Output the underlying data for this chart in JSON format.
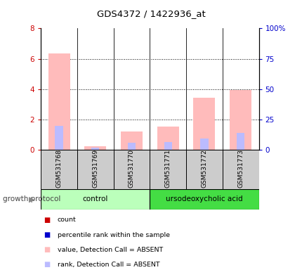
{
  "title": "GDS4372 / 1422936_at",
  "samples": [
    "GSM531768",
    "GSM531769",
    "GSM531770",
    "GSM531771",
    "GSM531772",
    "GSM531773"
  ],
  "value_absent": [
    6.35,
    0.22,
    1.2,
    1.55,
    3.45,
    3.95
  ],
  "rank_absent": [
    1.6,
    0.15,
    0.45,
    0.5,
    0.75,
    1.1
  ],
  "ylim_left": [
    0,
    8
  ],
  "ylim_right": [
    0,
    100
  ],
  "yticks_left": [
    0,
    2,
    4,
    6,
    8
  ],
  "yticks_right": [
    0,
    25,
    50,
    75,
    100
  ],
  "yticklabels_right": [
    "0",
    "25",
    "50",
    "75",
    "100%"
  ],
  "color_value_absent": "#ffbbbb",
  "color_rank_absent": "#bbbbff",
  "color_count": "#cc0000",
  "color_percentile": "#0000cc",
  "background_color": "#ffffff",
  "sample_box_color": "#cccccc",
  "control_label": "control",
  "treatment_label": "ursodeoxycholic acid",
  "group_label": "growth protocol",
  "control_bg": "#bbffbb",
  "treatment_bg": "#44dd44",
  "legend_items": [
    {
      "label": "count",
      "color": "#cc0000"
    },
    {
      "label": "percentile rank within the sample",
      "color": "#0000cc"
    },
    {
      "label": "value, Detection Call = ABSENT",
      "color": "#ffbbbb"
    },
    {
      "label": "rank, Detection Call = ABSENT",
      "color": "#bbbbff"
    }
  ]
}
